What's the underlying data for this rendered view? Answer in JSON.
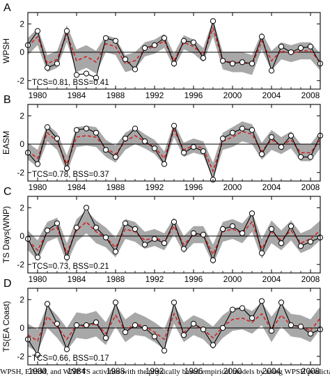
{
  "caption": "WPSH, EASM, and WNP TS activities with the physically based empirical models by using WPSH predictability",
  "style": {
    "obs_color": "#000000",
    "model_color": "#d42020",
    "band_color": "#a8a8a8"
  },
  "chart_data": [
    {
      "type": "line",
      "panel": "A",
      "ylabel": "WPSH",
      "xlim": [
        1979,
        2009
      ],
      "ylim": [
        -2.6,
        2.8
      ],
      "xticks": [
        1980,
        1984,
        1988,
        1992,
        1996,
        2000,
        2004,
        2008
      ],
      "yticks": [
        -2,
        0,
        2
      ],
      "annotation": "TCS=0.81,  BSS=0.41",
      "x": [
        1979,
        1980,
        1981,
        1982,
        1983,
        1984,
        1985,
        1986,
        1987,
        1988,
        1989,
        1990,
        1991,
        1992,
        1993,
        1994,
        1995,
        1996,
        1997,
        1998,
        1999,
        2000,
        2001,
        2002,
        2003,
        2004,
        2005,
        2006,
        2007,
        2008,
        2009
      ],
      "series": [
        {
          "values": [
            0.5,
            1.5,
            -1.1,
            -0.8,
            1.5,
            -1.6,
            -1.5,
            -1.8,
            1.0,
            0.8,
            -0.5,
            -1.2,
            0.3,
            0.5,
            1.0,
            -0.8,
            0.8,
            0.7,
            -0.4,
            2.2,
            -0.6,
            -0.8,
            -0.7,
            -0.8,
            1.1,
            -1.3,
            0.4,
            0.0,
            0.3,
            0.4,
            -0.8
          ]
        },
        {
          "values": [
            0.4,
            1.1,
            -0.8,
            -0.5,
            1.3,
            -0.6,
            -0.3,
            -0.7,
            0.6,
            0.4,
            -0.8,
            -0.6,
            0.2,
            0.4,
            0.8,
            -0.6,
            0.7,
            0.4,
            -0.2,
            1.7,
            -0.6,
            -0.7,
            -0.7,
            -0.9,
            0.8,
            -0.6,
            0.1,
            -0.1,
            0.1,
            0.1,
            -0.7
          ]
        },
        {
          "values": [
            0.6,
            0.6,
            0.6,
            0.6,
            0.6,
            0.8,
            0.8,
            0.8,
            0.6,
            0.6,
            0.6,
            0.6,
            0.5,
            0.5,
            0.5,
            0.5,
            0.5,
            0.5,
            0.5,
            0.6,
            0.6,
            0.7,
            0.7,
            0.7,
            0.6,
            0.7,
            0.6,
            0.6,
            0.6,
            0.6,
            0.6
          ]
        }
      ]
    },
    {
      "type": "line",
      "panel": "B",
      "ylabel": "EASM",
      "xlim": [
        1979,
        2009
      ],
      "ylim": [
        -2.6,
        2.8
      ],
      "xticks": [
        1980,
        1984,
        1988,
        1992,
        1996,
        2000,
        2004,
        2008
      ],
      "yticks": [
        -2,
        0,
        2
      ],
      "annotation": "TCS=0.78,  BSS=0.37",
      "x": [
        1979,
        1980,
        1981,
        1982,
        1983,
        1984,
        1985,
        1986,
        1987,
        1988,
        1989,
        1990,
        1991,
        1992,
        1993,
        1994,
        1995,
        1996,
        1997,
        1998,
        1999,
        2000,
        2001,
        2002,
        2003,
        2004,
        2005,
        2006,
        2007,
        2008,
        2009
      ],
      "series": [
        {
          "values": [
            -0.6,
            -1.4,
            1.2,
            0.4,
            -1.7,
            1.0,
            1.1,
            0.8,
            -0.4,
            -0.9,
            0.4,
            1.1,
            0.2,
            -0.3,
            -1.4,
            1.3,
            -0.6,
            -0.2,
            -0.5,
            -2.5,
            0.4,
            0.8,
            1.1,
            1.0,
            -0.7,
            0.5,
            -0.2,
            0.6,
            -0.9,
            -0.9,
            0.6
          ]
        },
        {
          "values": [
            -0.5,
            -1.0,
            0.8,
            0.2,
            -1.4,
            0.5,
            0.6,
            0.5,
            -0.3,
            -0.7,
            0.2,
            0.6,
            0.2,
            -0.2,
            -1.0,
            1.0,
            -0.4,
            -0.1,
            -0.3,
            -1.9,
            0.2,
            0.5,
            0.9,
            0.7,
            -0.5,
            0.3,
            -0.1,
            0.3,
            -0.6,
            -0.6,
            0.3
          ]
        },
        {
          "values": [
            0.6,
            0.6,
            0.6,
            0.6,
            0.6,
            0.7,
            0.7,
            0.7,
            0.6,
            0.6,
            0.6,
            0.6,
            0.5,
            0.5,
            0.5,
            0.5,
            0.5,
            0.5,
            0.5,
            0.6,
            0.6,
            0.7,
            0.7,
            0.7,
            0.6,
            0.7,
            0.6,
            0.6,
            0.6,
            0.6,
            0.6
          ]
        }
      ]
    },
    {
      "type": "line",
      "panel": "C",
      "ylabel": "TS  Days(WNP)",
      "xlim": [
        1979,
        2009
      ],
      "ylim": [
        -2.6,
        2.8
      ],
      "xticks": [
        1980,
        1984,
        1988,
        1992,
        1996,
        2000,
        2004,
        2008
      ],
      "yticks": [
        -2,
        0,
        2
      ],
      "annotation": "TCS=0.73,  BSS=0.21",
      "x": [
        1979,
        1980,
        1981,
        1982,
        1983,
        1984,
        1985,
        1986,
        1987,
        1988,
        1989,
        1990,
        1991,
        1992,
        1993,
        1994,
        1995,
        1996,
        1997,
        1998,
        1999,
        2000,
        2001,
        2002,
        2003,
        2004,
        2005,
        2006,
        2007,
        2008,
        2009
      ],
      "series": [
        {
          "values": [
            -0.2,
            -1.5,
            0.4,
            0.9,
            -1.5,
            0.6,
            2.0,
            0.6,
            -0.1,
            -1.1,
            0.9,
            0.5,
            -0.6,
            -0.2,
            -0.5,
            1.0,
            -0.9,
            0.2,
            0.1,
            -1.7,
            0.5,
            0.7,
            0.2,
            1.6,
            -1.2,
            0.5,
            -0.5,
            0.7,
            -0.7,
            -0.4,
            -0.1
          ]
        },
        {
          "values": [
            -0.3,
            -1.0,
            0.3,
            0.6,
            -1.2,
            0.4,
            1.0,
            0.3,
            -0.1,
            -0.8,
            0.5,
            0.3,
            -0.3,
            -0.1,
            -0.4,
            0.7,
            -0.6,
            0.1,
            0.1,
            -1.3,
            0.3,
            0.5,
            0.2,
            1.0,
            -0.9,
            0.3,
            -0.3,
            0.4,
            -0.5,
            -0.2,
            0.4
          ]
        },
        {
          "values": [
            0.7,
            0.7,
            0.7,
            0.7,
            0.7,
            0.8,
            0.8,
            0.8,
            0.7,
            0.7,
            0.7,
            0.7,
            0.6,
            0.6,
            0.6,
            0.6,
            0.6,
            0.6,
            0.6,
            0.7,
            0.7,
            0.7,
            0.7,
            0.7,
            0.7,
            0.8,
            0.7,
            0.7,
            0.7,
            0.7,
            0.7
          ]
        }
      ]
    },
    {
      "type": "line",
      "panel": "D",
      "ylabel": "TS(EA  Coast)",
      "xlim": [
        1979,
        2009
      ],
      "ylim": [
        -2.6,
        2.8
      ],
      "xticks": [
        1980,
        1984,
        1988,
        1992,
        1996,
        2000,
        2004,
        2008
      ],
      "yticks": [
        -2,
        0,
        2
      ],
      "annotation": "TCS=0.66,  BSS=0.17",
      "x": [
        1979,
        1980,
        1981,
        1982,
        1983,
        1984,
        1985,
        1986,
        1987,
        1988,
        1989,
        1990,
        1991,
        1992,
        1993,
        1994,
        1995,
        1996,
        1997,
        1998,
        1999,
        2000,
        2001,
        2002,
        2003,
        2004,
        2005,
        2006,
        2007,
        2008,
        2009
      ],
      "series": [
        {
          "values": [
            -0.8,
            -1.9,
            1.7,
            0.3,
            -1.5,
            0.2,
            0.2,
            0.4,
            -0.7,
            1.8,
            -0.3,
            0.2,
            0.0,
            -0.6,
            -1.6,
            1.8,
            -0.5,
            0.3,
            -0.1,
            -1.2,
            0.0,
            1.3,
            1.4,
            0.7,
            1.9,
            -0.2,
            1.8,
            0.2,
            0.1,
            -0.4,
            -0.1
          ]
        },
        {
          "values": [
            -0.5,
            -0.9,
            0.8,
            0.1,
            -0.8,
            0.2,
            0.1,
            0.3,
            -0.4,
            0.9,
            -0.2,
            0.3,
            0.1,
            -0.3,
            -0.8,
            1.0,
            -0.3,
            0.2,
            -0.1,
            -0.7,
            0.1,
            0.6,
            0.7,
            0.4,
            1.0,
            -0.1,
            0.9,
            0.2,
            0.1,
            -0.2,
            0.7
          ]
        },
        {
          "values": [
            0.8,
            0.8,
            0.8,
            0.8,
            0.8,
            0.9,
            0.9,
            0.9,
            0.8,
            0.8,
            0.8,
            0.8,
            0.7,
            0.7,
            0.7,
            0.7,
            0.7,
            0.7,
            0.7,
            0.8,
            0.8,
            0.8,
            0.8,
            0.8,
            0.8,
            0.9,
            0.8,
            0.8,
            0.8,
            0.8,
            0.8
          ]
        }
      ]
    }
  ]
}
